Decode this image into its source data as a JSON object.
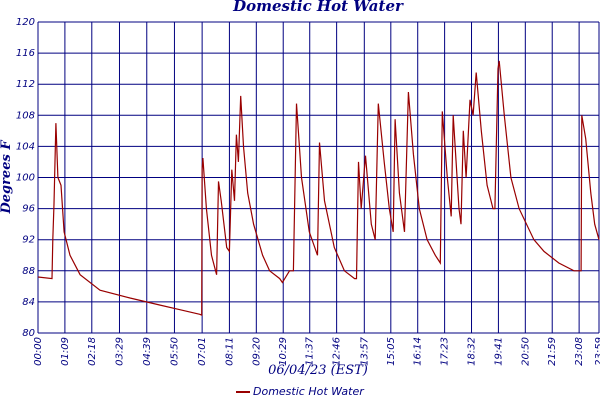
{
  "chart_data": {
    "type": "line",
    "title": "Domestic Hot Water",
    "x_label": "06/04/23 (EST)",
    "y_label": "Degrees F",
    "x": [
      0,
      36,
      38,
      41,
      46,
      51,
      59,
      67,
      82,
      108,
      159,
      236,
      312,
      364,
      415,
      420,
      421,
      423,
      432,
      445,
      458,
      463,
      470,
      484,
      491,
      497,
      504,
      509,
      514,
      520,
      527,
      538,
      553,
      576,
      594,
      620,
      627,
      645,
      655,
      663,
      676,
      696,
      717,
      722,
      735,
      760,
      786,
      812,
      817,
      822,
      829,
      840,
      855,
      865,
      873,
      888,
      901,
      911,
      916,
      927,
      940,
      950,
      963,
      978,
      998,
      1019,
      1032,
      1037,
      1050,
      1060,
      1065,
      1080,
      1085,
      1091,
      1098,
      1108,
      1116,
      1124,
      1137,
      1152,
      1167,
      1172,
      1180,
      1183,
      1196,
      1213,
      1234,
      1272,
      1298,
      1336,
      1375,
      1393,
      1395,
      1405,
      1418,
      1428,
      1439
    ],
    "series": [
      {
        "name": "Domestic Hot Water",
        "color": "#990000",
        "values": [
          87.2,
          87,
          92,
          96.6,
          107,
          100,
          99,
          93,
          90,
          87.5,
          85.5,
          84.5,
          83.6,
          83,
          82.4,
          82.3,
          101,
          102.5,
          96,
          90,
          87.5,
          99.5,
          97,
          91,
          90.5,
          101,
          97,
          105.5,
          102,
          110.5,
          104,
          98,
          94,
          90,
          88,
          87,
          86.5,
          88,
          88,
          109.5,
          100,
          93,
          90,
          104.5,
          97,
          91,
          88,
          87,
          87,
          102,
          96,
          102.8,
          94,
          92,
          109.5,
          102,
          96,
          93,
          107.5,
          98,
          93,
          111,
          103,
          96,
          92,
          90,
          89,
          108.5,
          100,
          95,
          108,
          96,
          94,
          106,
          100,
          110,
          108,
          113.5,
          106,
          99,
          96,
          96,
          114,
          115,
          108,
          100,
          96,
          92,
          90.5,
          89,
          88,
          88,
          108,
          105,
          98,
          94,
          92
        ]
      }
    ],
    "xlim": [
      0,
      1439
    ],
    "ylim": [
      80,
      120
    ],
    "xticks": [
      {
        "value": 0,
        "label": "00:00"
      },
      {
        "value": 69,
        "label": "01:09"
      },
      {
        "value": 138,
        "label": "02:18"
      },
      {
        "value": 209,
        "label": "03:29"
      },
      {
        "value": 279,
        "label": "04:39"
      },
      {
        "value": 350,
        "label": "05:50"
      },
      {
        "value": 421,
        "label": "07:01"
      },
      {
        "value": 491,
        "label": "08:11"
      },
      {
        "value": 560,
        "label": "09:20"
      },
      {
        "value": 629,
        "label": "10:29"
      },
      {
        "value": 697,
        "label": "11:37"
      },
      {
        "value": 766,
        "label": "12:46"
      },
      {
        "value": 837,
        "label": "13:57"
      },
      {
        "value": 905,
        "label": "15:05"
      },
      {
        "value": 974,
        "label": "16:14"
      },
      {
        "value": 1043,
        "label": "17:23"
      },
      {
        "value": 1112,
        "label": "18:32"
      },
      {
        "value": 1181,
        "label": "19:41"
      },
      {
        "value": 1250,
        "label": "20:50"
      },
      {
        "value": 1319,
        "label": "21:59"
      },
      {
        "value": 1388,
        "label": "23:08"
      },
      {
        "value": 1439,
        "label": "23:59"
      }
    ],
    "yticks": [
      80,
      84,
      88,
      92,
      96,
      100,
      104,
      108,
      112,
      116,
      120
    ],
    "grid": true
  }
}
